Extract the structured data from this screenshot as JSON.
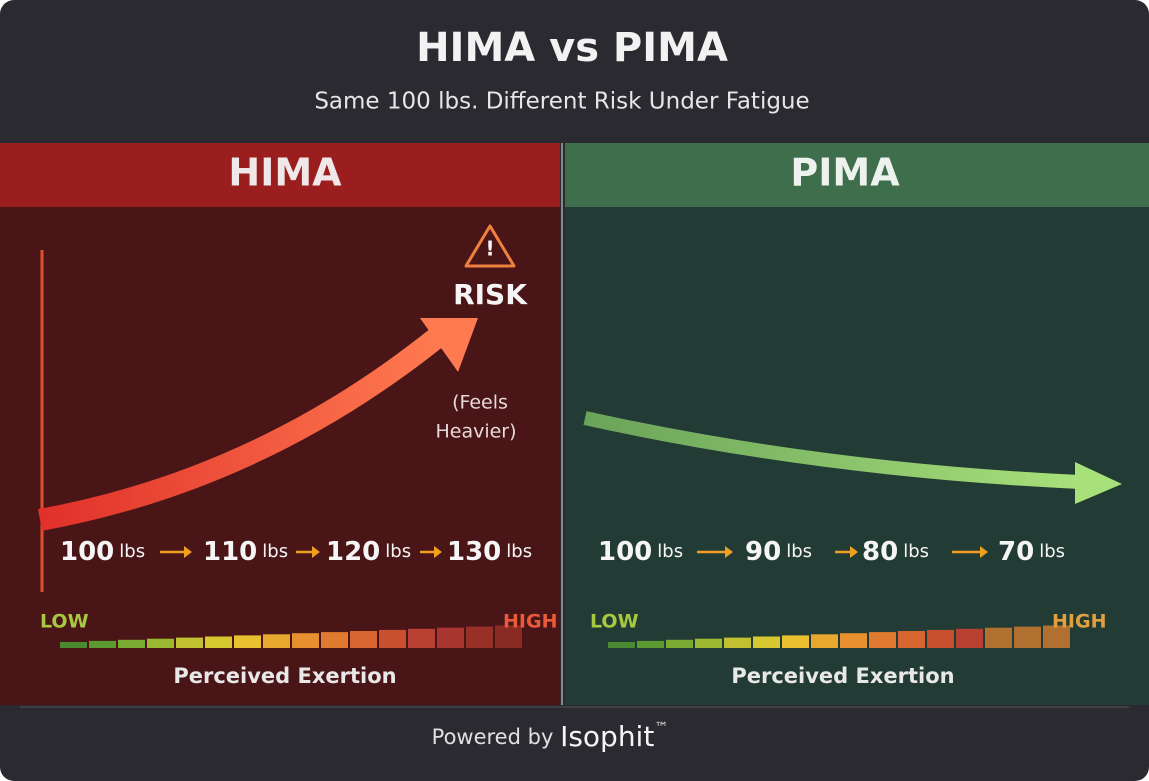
{
  "header": {
    "title": "HIMA vs PIMA",
    "subtitle": "Same 100 lbs. Different Risk Under Fatigue"
  },
  "panels": [
    {
      "title": "HIMA",
      "risk_label": "RISK",
      "note_lines": [
        "(Feels",
        "Heavier)"
      ],
      "weights": [
        {
          "value": 100,
          "unit": "lbs"
        },
        {
          "value": 110,
          "unit": "lbs"
        },
        {
          "value": 120,
          "unit": "lbs"
        },
        {
          "value": 130,
          "unit": "lbs"
        }
      ],
      "scale_low": "LOW",
      "scale_high": "HIGH",
      "scale_label": "Perceived Exertion"
    },
    {
      "title": "PIMA",
      "weights": [
        {
          "value": 100,
          "unit": "lbs"
        },
        {
          "value": 90,
          "unit": "lbs"
        },
        {
          "value": 80,
          "unit": "lbs"
        },
        {
          "value": 70,
          "unit": "lbs"
        }
      ],
      "scale_low": "LOW",
      "scale_high": "HIGH",
      "scale_label": "Perceived Exertion"
    }
  ],
  "footer": {
    "prefix": "Powered by",
    "brand": "Isophit",
    "mark": "™"
  }
}
